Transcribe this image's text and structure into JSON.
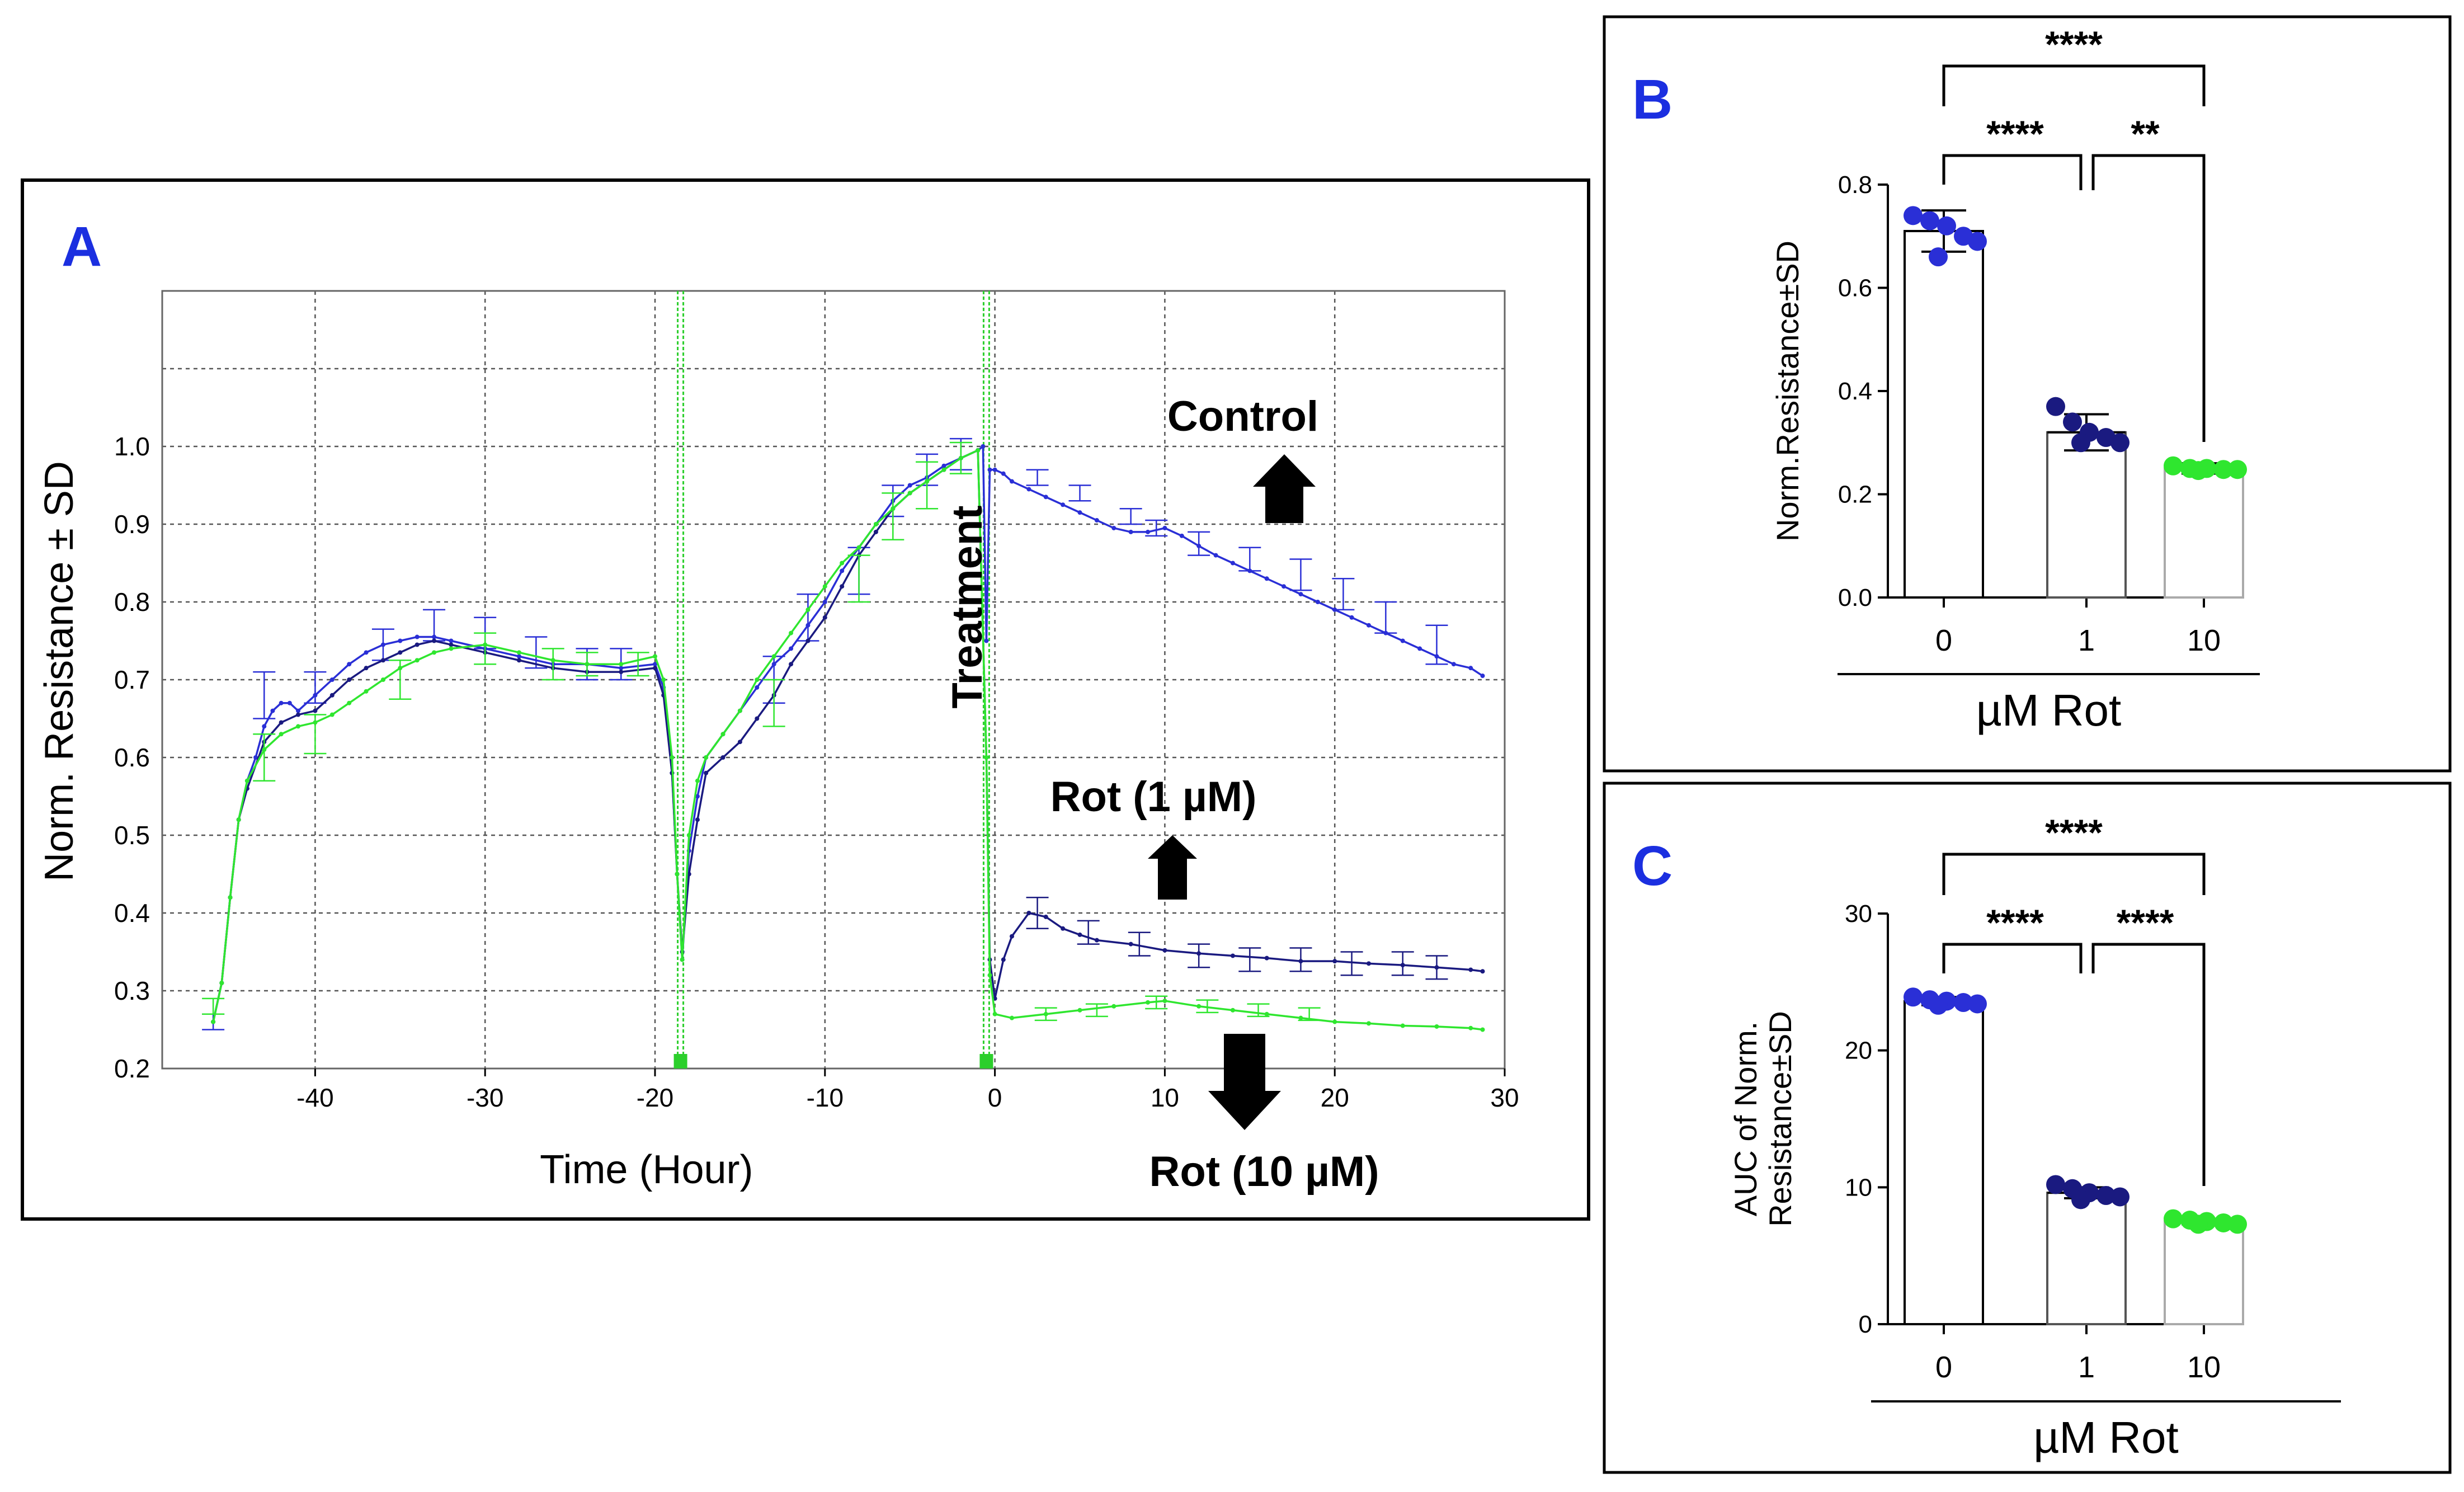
{
  "colors": {
    "control": "#2a2fd6",
    "rot1": "#1a1a80",
    "rot10": "#2fe62f",
    "panel_letter": "#1b2fe0",
    "marker": "#2ccf2c"
  },
  "chart_data": [
    {
      "panel": "A",
      "type": "line",
      "xlabel": "Time (Hour)",
      "ylabel": "Norm. Resistance ± SD",
      "xlim": [
        -49,
        30
      ],
      "ylim": [
        0.2,
        1.2
      ],
      "x_ticks": [
        -40,
        -30,
        -20,
        -10,
        0,
        10,
        20,
        30
      ],
      "y_ticks": [
        0.2,
        0.3,
        0.4,
        0.5,
        0.6,
        0.7,
        0.8,
        0.9,
        1.0
      ],
      "x_tick_labels": [
        "-40",
        "-30",
        "-20",
        "-10",
        "0",
        "10",
        "20",
        "30"
      ],
      "y_tick_labels": [
        "0.2",
        "0.3",
        "0.4",
        "0.5",
        "0.6",
        "0.7",
        "0.8",
        "0.9",
        "1.0"
      ],
      "grid": true,
      "vertical_markers": [
        -18.5,
        -0.5
      ],
      "annotations": {
        "treatment": "Treatment",
        "control": "Control",
        "rot1": "Rot (1 µM)",
        "rot10": "Rot (10 µM)"
      },
      "series": [
        {
          "name": "Control",
          "x": [
            -46,
            -45.5,
            -45,
            -44.5,
            -44,
            -43.5,
            -43,
            -42.5,
            -42,
            -41.5,
            -41,
            -40,
            -39,
            -38,
            -37,
            -36,
            -35,
            -34,
            -33,
            -32,
            -30,
            -28,
            -26,
            -24,
            -22,
            -20,
            -19.5,
            -19,
            -18.7,
            -18.4,
            -18,
            -17.5,
            -17,
            -16,
            -15,
            -14,
            -13,
            -12,
            -11,
            -10,
            -9,
            -8,
            -7,
            -6,
            -5,
            -4,
            -3,
            -2,
            -1,
            -0.7,
            -0.5,
            -0.3,
            0,
            0.5,
            1,
            2,
            3,
            4,
            5,
            6,
            7,
            8,
            9,
            10,
            11,
            12,
            13,
            14,
            15,
            16,
            17,
            18,
            19,
            20,
            21,
            22,
            23,
            24,
            25,
            26,
            27,
            28,
            28.7
          ],
          "y": [
            0.26,
            0.31,
            0.42,
            0.52,
            0.57,
            0.6,
            0.64,
            0.66,
            0.67,
            0.67,
            0.66,
            0.68,
            0.7,
            0.72,
            0.735,
            0.745,
            0.75,
            0.755,
            0.755,
            0.75,
            0.74,
            0.73,
            0.72,
            0.72,
            0.715,
            0.72,
            0.69,
            0.58,
            0.45,
            0.34,
            0.48,
            0.55,
            0.6,
            0.63,
            0.66,
            0.69,
            0.72,
            0.74,
            0.77,
            0.8,
            0.84,
            0.87,
            0.9,
            0.93,
            0.95,
            0.96,
            0.975,
            0.985,
            0.995,
            1.0,
            0.75,
            0.97,
            0.97,
            0.965,
            0.955,
            0.945,
            0.935,
            0.925,
            0.915,
            0.905,
            0.895,
            0.89,
            0.89,
            0.895,
            0.885,
            0.872,
            0.86,
            0.85,
            0.84,
            0.83,
            0.82,
            0.81,
            0.8,
            0.79,
            0.78,
            0.77,
            0.76,
            0.75,
            0.74,
            0.73,
            0.72,
            0.715,
            0.705
          ],
          "error_x": [
            -46,
            -43,
            -40,
            -36,
            -33,
            -30,
            -27,
            -24,
            -22,
            -13,
            -11,
            -8,
            -6,
            -4,
            -2,
            2.5,
            5,
            8,
            9.5,
            12,
            15,
            18,
            20.5,
            23,
            26
          ],
          "error_y": [
            0.26,
            0.68,
            0.69,
            0.745,
            0.77,
            0.76,
            0.735,
            0.72,
            0.72,
            0.7,
            0.78,
            0.84,
            0.93,
            0.97,
            0.99,
            0.96,
            0.94,
            0.91,
            0.895,
            0.875,
            0.855,
            0.835,
            0.81,
            0.78,
            0.745
          ],
          "error_sd": [
            0.01,
            0.03,
            0.02,
            0.02,
            0.02,
            0.02,
            0.02,
            0.02,
            0.02,
            0.03,
            0.03,
            0.03,
            0.02,
            0.02,
            0.02,
            0.01,
            0.01,
            0.01,
            0.01,
            0.015,
            0.015,
            0.02,
            0.02,
            0.02,
            0.025
          ]
        },
        {
          "name": "Rot (1 µM)",
          "x": [
            -46,
            -45.5,
            -45,
            -44.5,
            -44,
            -43,
            -42,
            -41,
            -40,
            -39,
            -38,
            -37,
            -36,
            -35,
            -34,
            -33,
            -32,
            -30,
            -28,
            -26,
            -24,
            -22,
            -20,
            -19.5,
            -19,
            -18.7,
            -18.4,
            -18,
            -17.5,
            -17,
            -16,
            -15,
            -14,
            -13,
            -12,
            -11,
            -10,
            -9,
            -8,
            -7,
            -6,
            -5,
            -4,
            -3,
            -2,
            -1,
            -0.5,
            -0.3,
            0,
            0.5,
            1,
            2,
            3,
            4,
            5,
            6,
            8,
            10,
            12,
            14,
            16,
            18,
            20,
            22,
            24,
            26,
            28,
            28.7
          ],
          "y": [
            0.26,
            0.31,
            0.42,
            0.52,
            0.56,
            0.62,
            0.645,
            0.655,
            0.66,
            0.68,
            0.7,
            0.715,
            0.725,
            0.735,
            0.745,
            0.75,
            0.745,
            0.735,
            0.725,
            0.715,
            0.71,
            0.71,
            0.715,
            0.68,
            0.58,
            0.45,
            0.35,
            0.45,
            0.52,
            0.58,
            0.6,
            0.62,
            0.65,
            0.68,
            0.72,
            0.75,
            0.78,
            0.82,
            0.86,
            0.89,
            0.92,
            0.94,
            0.955,
            0.97,
            0.985,
            0.995,
            0.6,
            0.34,
            0.29,
            0.34,
            0.37,
            0.4,
            0.395,
            0.38,
            0.372,
            0.365,
            0.36,
            0.352,
            0.348,
            0.345,
            0.342,
            0.338,
            0.338,
            0.335,
            0.333,
            0.33,
            0.327,
            0.325
          ],
          "error_x": [
            2.5,
            5.5,
            8.5,
            12,
            15,
            18,
            21,
            24,
            26
          ],
          "error_y": [
            0.4,
            0.375,
            0.36,
            0.345,
            0.34,
            0.34,
            0.335,
            0.335,
            0.33
          ],
          "error_sd": [
            0.02,
            0.015,
            0.015,
            0.015,
            0.015,
            0.015,
            0.015,
            0.015,
            0.015
          ]
        },
        {
          "name": "Rot (10 µM)",
          "x": [
            -46,
            -45.5,
            -45,
            -44.5,
            -44,
            -43,
            -42,
            -41,
            -40,
            -39,
            -38,
            -37,
            -36,
            -35,
            -34,
            -33,
            -32,
            -30,
            -28,
            -26,
            -24,
            -22,
            -20,
            -19.5,
            -19,
            -18.7,
            -18.4,
            -18,
            -17.5,
            -17,
            -16,
            -15,
            -14,
            -13,
            -12,
            -11,
            -10,
            -9,
            -8,
            -7,
            -6,
            -5,
            -4,
            -3,
            -2,
            -1,
            -0.5,
            -0.3,
            0,
            1,
            3,
            5,
            7,
            9,
            10,
            12,
            14,
            16,
            18,
            20,
            22,
            24,
            26,
            28,
            28.7
          ],
          "y": [
            0.26,
            0.31,
            0.42,
            0.52,
            0.57,
            0.61,
            0.63,
            0.64,
            0.645,
            0.655,
            0.67,
            0.685,
            0.7,
            0.715,
            0.725,
            0.735,
            0.74,
            0.745,
            0.735,
            0.725,
            0.72,
            0.72,
            0.73,
            0.7,
            0.6,
            0.45,
            0.34,
            0.5,
            0.57,
            0.6,
            0.63,
            0.66,
            0.7,
            0.73,
            0.76,
            0.79,
            0.82,
            0.85,
            0.87,
            0.9,
            0.92,
            0.94,
            0.955,
            0.97,
            0.985,
            0.995,
            0.6,
            0.32,
            0.27,
            0.265,
            0.27,
            0.275,
            0.28,
            0.285,
            0.287,
            0.28,
            0.275,
            0.27,
            0.265,
            0.26,
            0.258,
            0.255,
            0.254,
            0.252,
            0.25
          ],
          "error_x": [
            -46,
            -43,
            -40,
            -35,
            -30,
            -26,
            -24,
            -21,
            -13,
            -8,
            -6,
            -4,
            -2,
            3,
            6,
            9.5,
            12.5,
            15.5,
            18.5
          ],
          "error_y": [
            0.28,
            0.6,
            0.63,
            0.7,
            0.74,
            0.72,
            0.72,
            0.72,
            0.67,
            0.83,
            0.91,
            0.95,
            0.985,
            0.27,
            0.275,
            0.285,
            0.28,
            0.275,
            0.27
          ],
          "error_sd": [
            0.01,
            0.03,
            0.025,
            0.025,
            0.02,
            0.02,
            0.015,
            0.015,
            0.03,
            0.03,
            0.03,
            0.03,
            0.02,
            0.008,
            0.008,
            0.008,
            0.008,
            0.008,
            0.008
          ]
        }
      ]
    },
    {
      "panel": "B",
      "type": "bar",
      "categories": [
        "0",
        "1",
        "10"
      ],
      "values": [
        0.71,
        0.32,
        0.25
      ],
      "sd": [
        0.04,
        0.035,
        0.01
      ],
      "points": [
        [
          0.74,
          0.73,
          0.72,
          0.7,
          0.69,
          0.66
        ],
        [
          0.37,
          0.34,
          0.32,
          0.31,
          0.3,
          0.3
        ],
        [
          0.255,
          0.25,
          0.25,
          0.248,
          0.248,
          0.246
        ]
      ],
      "xlabel": "µM Rot",
      "ylabel": "Norm.Resistance±SD",
      "ylim": [
        0,
        0.8
      ],
      "y_ticks": [
        0.0,
        0.2,
        0.4,
        0.6,
        0.8
      ],
      "y_tick_labels": [
        "0.0",
        "0.2",
        "0.4",
        "0.6",
        "0.8"
      ],
      "significance": [
        {
          "pair": [
            "0",
            "10"
          ],
          "label": "****"
        },
        {
          "pair": [
            "0",
            "1"
          ],
          "label": "****"
        },
        {
          "pair": [
            "1",
            "10"
          ],
          "label": "**"
        }
      ]
    },
    {
      "panel": "C",
      "type": "bar",
      "categories": [
        "0",
        "1",
        "10"
      ],
      "values": [
        23.6,
        9.6,
        7.5
      ],
      "sd": [
        0.3,
        0.4,
        0.2
      ],
      "points": [
        [
          23.9,
          23.7,
          23.6,
          23.5,
          23.4,
          23.3
        ],
        [
          10.2,
          9.9,
          9.6,
          9.4,
          9.3,
          9.1
        ],
        [
          7.7,
          7.6,
          7.5,
          7.4,
          7.3,
          7.3
        ]
      ],
      "xlabel": "µM Rot",
      "ylabel": "AUC of Norm. Resistance±SD",
      "ylabel_lines": [
        "AUC of Norm.",
        "Resistance±SD"
      ],
      "ylim": [
        0,
        30
      ],
      "y_ticks": [
        0,
        10,
        20,
        30
      ],
      "y_tick_labels": [
        "0",
        "10",
        "20",
        "30"
      ],
      "significance": [
        {
          "pair": [
            "0",
            "10"
          ],
          "label": "****"
        },
        {
          "pair": [
            "0",
            "1"
          ],
          "label": "****"
        },
        {
          "pair": [
            "1",
            "10"
          ],
          "label": "****"
        }
      ]
    }
  ],
  "panels": {
    "a_letter": "A",
    "b_letter": "B",
    "c_letter": "C"
  }
}
